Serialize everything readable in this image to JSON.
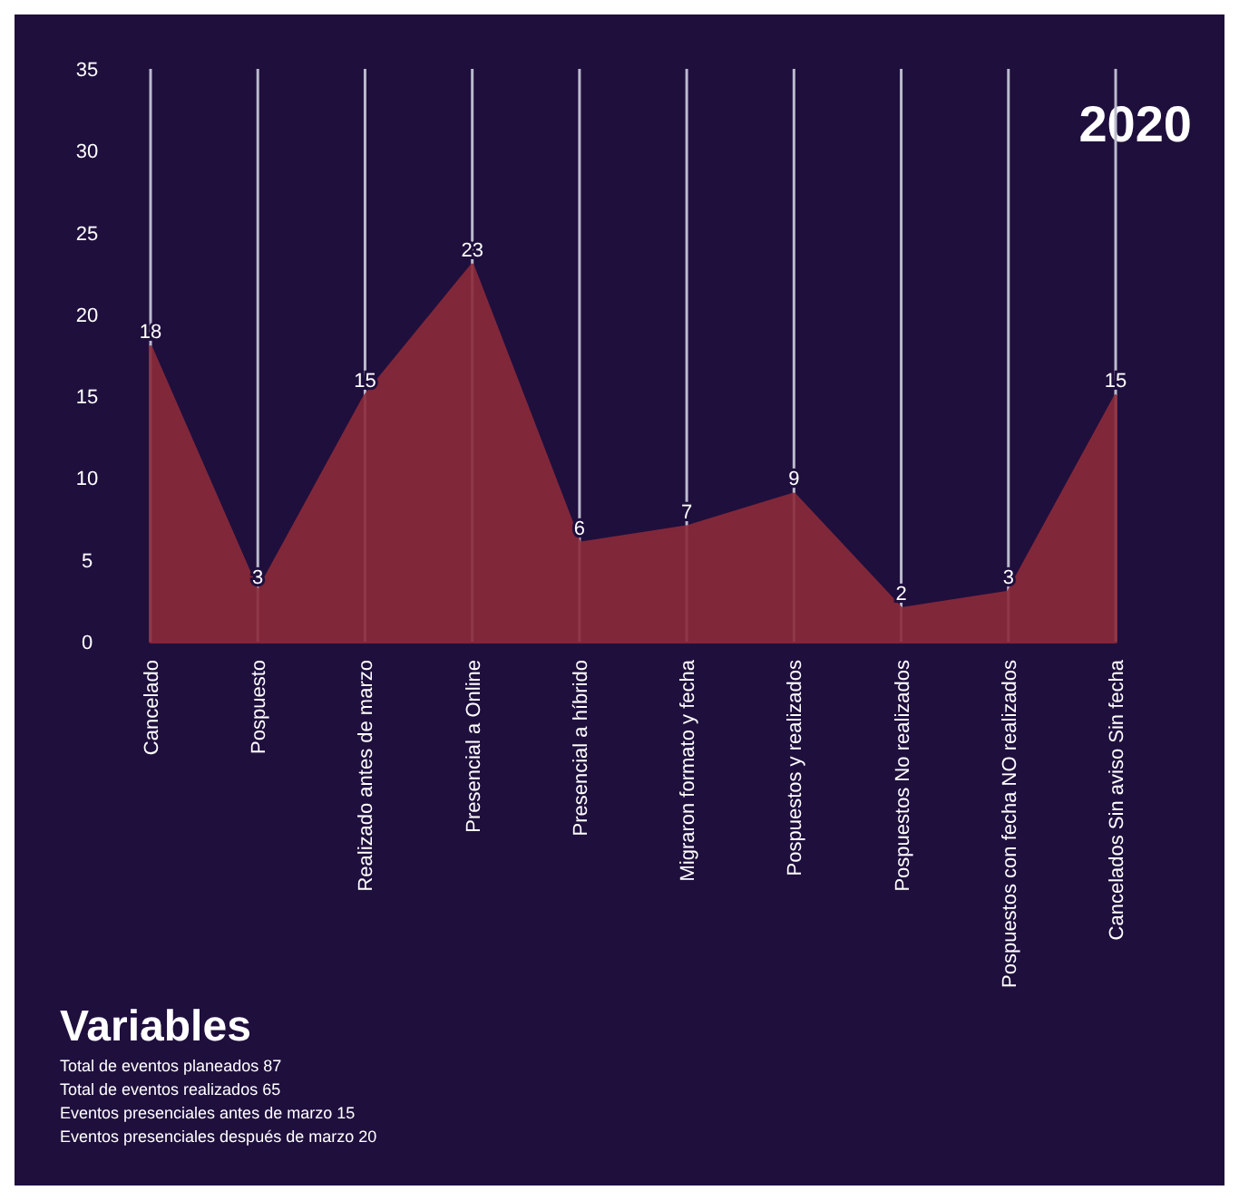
{
  "chart_data": {
    "type": "area",
    "title": "2020",
    "categories": [
      "Cancelado",
      "Pospuesto",
      "Realizado antes de marzo",
      "Presencial a Online",
      "Presencial a híbrido",
      "Migraron formato y fecha",
      "Pospuestos y realizados",
      "Pospuestos No realizados",
      "Pospuestos con fecha NO realizados",
      "Cancelados Sin aviso Sin fecha"
    ],
    "values": [
      18,
      3,
      15,
      23,
      6,
      7,
      9,
      2,
      3,
      15
    ],
    "color": "#8b2a3a",
    "ylim": [
      0,
      35
    ],
    "yticks": [
      0,
      5,
      10,
      15,
      20,
      25,
      30,
      35
    ],
    "grid": "x",
    "data_labels": true,
    "annotations": [
      "Variables",
      "Total de eventos planeados 87",
      "Total de eventos realizados 65",
      "Eventos presenciales antes de marzo 15",
      "Eventos presenciales después de marzo 20"
    ]
  }
}
